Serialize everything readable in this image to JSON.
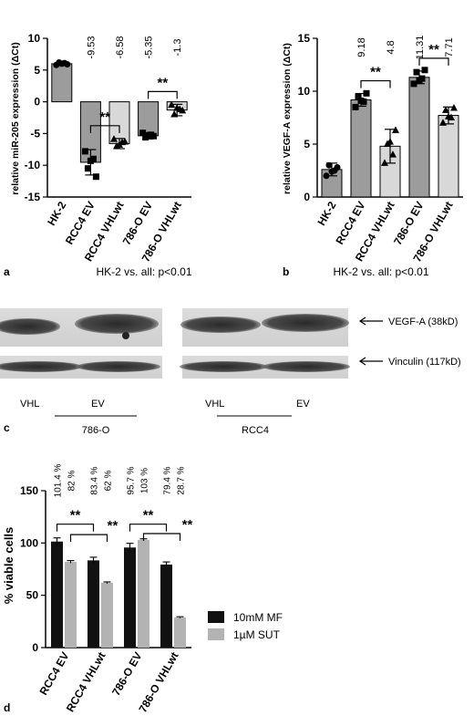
{
  "panels": {
    "a": {
      "label": "a",
      "caption": "HK-2 vs. all: p<0.01"
    },
    "b": {
      "label": "b",
      "caption": "HK-2 vs. all: p<0.01"
    },
    "c": {
      "label": "c"
    },
    "d": {
      "label": "d"
    }
  },
  "chart_data": [
    {
      "panel": "a",
      "type": "bar",
      "ylabel": "relative miR-205 expression (ΔCt)",
      "ylim": [
        -15,
        10
      ],
      "yticks": [
        10,
        5,
        0,
        -5,
        -10,
        -15
      ],
      "categories": [
        "HK-2",
        "RCC4 EV",
        "RCC4 VHLwt",
        "786-O EV",
        "786-O VHLwt"
      ],
      "values": [
        6.0,
        -9.53,
        -6.58,
        -5.35,
        -1.3
      ],
      "errors": [
        0.3,
        2.0,
        0.8,
        0.5,
        0.9
      ],
      "value_labels": [
        "",
        "-9.53",
        "-6.58",
        "-5.35",
        "-1.3"
      ],
      "significance": [
        {
          "from": 1,
          "to": 2,
          "label": "**"
        },
        {
          "from": 3,
          "to": 4,
          "label": "**"
        }
      ],
      "bar_colors": [
        "#9c9c9c",
        "#9c9c9c",
        "#d8d8d8",
        "#9c9c9c",
        "#d8d8d8"
      ],
      "points": [
        [
          5.8,
          6.1,
          6.2,
          5.9,
          6.0
        ],
        [
          -7.8,
          -9.0,
          -10.5,
          -11.8,
          -9.3
        ],
        [
          -5.9,
          -6.4,
          -7.0,
          -6.3,
          -6.8
        ],
        [
          -4.9,
          -5.2,
          -5.6,
          -5.4,
          -5.3
        ],
        [
          -0.5,
          -1.2,
          -2.0,
          -1.4,
          -1.0
        ]
      ]
    },
    {
      "panel": "b",
      "type": "bar",
      "ylabel": "relative VEGF-A expression (ΔCt)",
      "ylim": [
        0,
        15
      ],
      "yticks": [
        15,
        10,
        5,
        0
      ],
      "categories": [
        "HK-2",
        "RCC4 EV",
        "RCC4 VHLwt",
        "786-O EV",
        "786-O VHLwt"
      ],
      "values": [
        2.6,
        9.18,
        4.8,
        11.31,
        7.71
      ],
      "errors": [
        0.6,
        0.6,
        1.6,
        0.6,
        0.8
      ],
      "value_labels": [
        "",
        "9.18",
        "4.8",
        "11.31",
        "7.71"
      ],
      "significance": [
        {
          "from": 1,
          "to": 2,
          "label": "**"
        },
        {
          "from": 3,
          "to": 4,
          "label": "**"
        }
      ],
      "bar_colors": [
        "#9c9c9c",
        "#9c9c9c",
        "#d8d8d8",
        "#9c9c9c",
        "#d8d8d8"
      ],
      "points": [
        [
          2.0,
          2.5,
          3.0,
          2.8,
          2.4
        ],
        [
          8.5,
          9.0,
          9.5,
          9.8,
          9.1
        ],
        [
          3.2,
          4.0,
          5.0,
          6.3,
          5.2
        ],
        [
          10.7,
          11.2,
          11.8,
          12.0,
          11.0
        ],
        [
          7.0,
          7.5,
          8.2,
          8.4,
          7.6
        ]
      ]
    },
    {
      "panel": "d",
      "type": "bar",
      "ylabel": "% viable cells",
      "ylim": [
        0,
        150
      ],
      "yticks": [
        150,
        100,
        50,
        0
      ],
      "categories": [
        "RCC4 EV",
        "RCC4 VHLwt",
        "786-O EV",
        "786-O VHLwt"
      ],
      "series": [
        {
          "name": "10mM MF",
          "color": "#111111",
          "values": [
            101.4,
            83.4,
            95.7,
            79.4
          ],
          "errors": [
            3.5,
            3.0,
            4.0,
            2.5
          ]
        },
        {
          "name": "1µM SUT",
          "color": "#b3b3b3",
          "values": [
            82,
            62,
            103,
            28.7
          ],
          "errors": [
            1.2,
            0.8,
            1.0,
            0.8
          ]
        }
      ],
      "value_labels": [
        [
          "101.4 %",
          "82 %"
        ],
        [
          "83.4 %",
          "62 %"
        ],
        [
          "95.7 %",
          "103 %"
        ],
        [
          "79.4 %",
          "28.7 %"
        ]
      ],
      "significance": [
        {
          "from": [
            0,
            0
          ],
          "to": [
            1,
            0
          ],
          "label": "**"
        },
        {
          "from": [
            0,
            1
          ],
          "to": [
            1,
            1
          ],
          "label": "**"
        },
        {
          "from": [
            2,
            0
          ],
          "to": [
            3,
            0
          ],
          "label": "**"
        },
        {
          "from": [
            2,
            1
          ],
          "to": [
            3,
            1
          ],
          "label": "**"
        }
      ],
      "legend": "right"
    }
  ],
  "blot": {
    "bands": [
      {
        "label": "VEGF-A (38kD)"
      },
      {
        "label": "Vinculin  (117kD)"
      }
    ],
    "lanes": [
      "VHL",
      "EV",
      "VHL",
      "EV"
    ],
    "groups": [
      "786-O",
      "RCC4"
    ]
  }
}
